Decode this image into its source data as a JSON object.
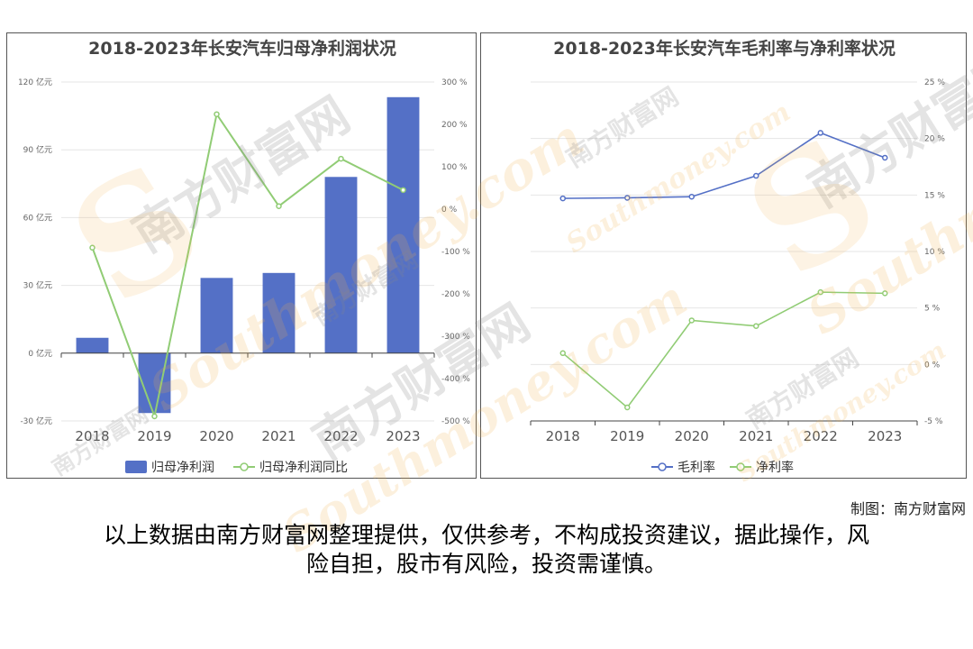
{
  "left_panel": {
    "chart_data": {
      "type": "bar",
      "title": "2018-2023年长安汽车归母净利润状况",
      "categories": [
        "2018",
        "2019",
        "2020",
        "2021",
        "2022",
        "2023"
      ],
      "series": [
        {
          "name": "归母净利润",
          "kind": "bar",
          "axis": "left",
          "values": [
            6.8,
            -26.5,
            33.3,
            35.5,
            78.0,
            113.3
          ]
        },
        {
          "name": "归母净利润同比",
          "kind": "line",
          "axis": "right",
          "values": [
            -91,
            -489,
            224,
            7,
            119,
            45
          ]
        }
      ],
      "y_left": {
        "min": -30,
        "max": 120,
        "ticks": [
          -30,
          0,
          30,
          60,
          90,
          120
        ],
        "unit": "亿元"
      },
      "y_right": {
        "min": -500,
        "max": 300,
        "ticks": [
          -500,
          -400,
          -300,
          -200,
          -100,
          0,
          100,
          200,
          300
        ],
        "unit": "%"
      },
      "legend": "bottom",
      "grid": true
    },
    "bar_color": "#5470c6",
    "line_color": "#91cc75"
  },
  "right_panel": {
    "chart_data": {
      "type": "line",
      "title": "2018-2023年长安汽车毛利率与净利率状况",
      "categories": [
        "2018",
        "2019",
        "2020",
        "2021",
        "2022",
        "2023"
      ],
      "series": [
        {
          "name": "毛利率",
          "values": [
            14.7,
            14.75,
            14.85,
            16.7,
            20.5,
            18.3
          ]
        },
        {
          "name": "净利率",
          "values": [
            1.0,
            -3.8,
            3.9,
            3.4,
            6.4,
            6.3
          ]
        }
      ],
      "y_right": {
        "min": -5,
        "max": 25,
        "ticks": [
          -5,
          0,
          5,
          10,
          15,
          20,
          25
        ],
        "unit": "%"
      },
      "legend": "bottom",
      "grid": true
    },
    "series_colors": [
      "#5470c6",
      "#91cc75"
    ]
  },
  "watermark": {
    "cn": "南方财富网",
    "en": "Southmoney.com",
    "logo": "S"
  },
  "credit": "制图：南方财富网",
  "disclaimer_line1": "以上数据由南方财富网整理提供，仅供参考，不构成投资建议，据此操作，风",
  "disclaimer_line2": "险自担，股市有风险，投资需谨慎。"
}
